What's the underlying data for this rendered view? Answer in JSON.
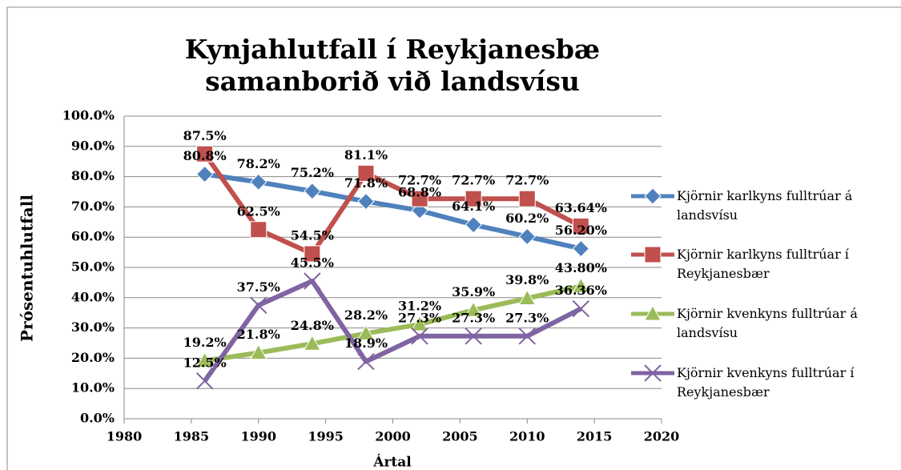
{
  "chart_data": {
    "type": "line",
    "title": "Kynjahlutfall í Reykjanesbæ samanborið við landsvísu",
    "x_label": "Ártal",
    "y_label": "Prósentuhlutfall",
    "x": [
      1986,
      1990,
      1994,
      1998,
      2002,
      2006,
      2010,
      2014
    ],
    "xlim": [
      1980,
      2020
    ],
    "xticks": [
      1980,
      1985,
      1990,
      1995,
      2000,
      2005,
      2010,
      2015,
      2020
    ],
    "ylim": [
      0,
      100
    ],
    "yticks": [
      {
        "value": 0,
        "label": "0.0%"
      },
      {
        "value": 10,
        "label": "10.0%"
      },
      {
        "value": 20,
        "label": "20.0%"
      },
      {
        "value": 30,
        "label": "30.0%"
      },
      {
        "value": 40,
        "label": "40.0%"
      },
      {
        "value": 50,
        "label": "50.0%"
      },
      {
        "value": 60,
        "label": "60.0%"
      },
      {
        "value": 70,
        "label": "70.0%"
      },
      {
        "value": 80,
        "label": "80.0%"
      },
      {
        "value": 90,
        "label": "90.0%"
      },
      {
        "value": 100,
        "label": "100.0%"
      }
    ],
    "grid": true,
    "legend": "right",
    "series": [
      {
        "name": "Kjörnir karlkyns fulltrúar á landsvísu",
        "color": "#4f81bd",
        "marker": "diamond",
        "values": [
          80.8,
          78.2,
          75.2,
          71.8,
          68.8,
          64.1,
          60.2,
          56.2
        ],
        "value_labels": [
          "80.8%",
          "78.2%",
          "75.2%",
          "71.8%",
          "68.8%",
          "64.1%",
          "60.2%",
          "56.20%"
        ]
      },
      {
        "name": "Kjörnir karlkyns fulltrúar í Reykjanesbær",
        "color": "#c0504d",
        "marker": "square",
        "values": [
          87.5,
          62.5,
          54.5,
          81.1,
          72.7,
          72.7,
          72.7,
          63.64
        ],
        "value_labels": [
          "87.5%",
          "62.5%",
          "54.5%",
          "81.1%",
          "72.7%",
          "72.7%",
          "72.7%",
          "63.64%"
        ]
      },
      {
        "name": "Kjörnir kvenkyns fulltrúar á landsvísu",
        "color": "#9bbb59",
        "marker": "triangle",
        "values": [
          19.2,
          21.8,
          24.8,
          28.2,
          31.2,
          35.9,
          39.8,
          43.8
        ],
        "value_labels": [
          "19.2%",
          "21.8%",
          "24.8%",
          "28.2%",
          "31.2%",
          "35.9%",
          "39.8%",
          "43.80%"
        ]
      },
      {
        "name": "Kjörnir kvenkyns fulltrúar í Reykjanesbær",
        "color": "#8064a2",
        "marker": "x",
        "values": [
          12.5,
          37.5,
          45.5,
          18.9,
          27.3,
          27.3,
          27.3,
          36.36
        ],
        "value_labels": [
          "12.5%",
          "37.5%",
          "45.5%",
          "18.9%",
          "27.3%",
          "27.3%",
          "27.3%",
          "36.36%"
        ]
      }
    ]
  }
}
